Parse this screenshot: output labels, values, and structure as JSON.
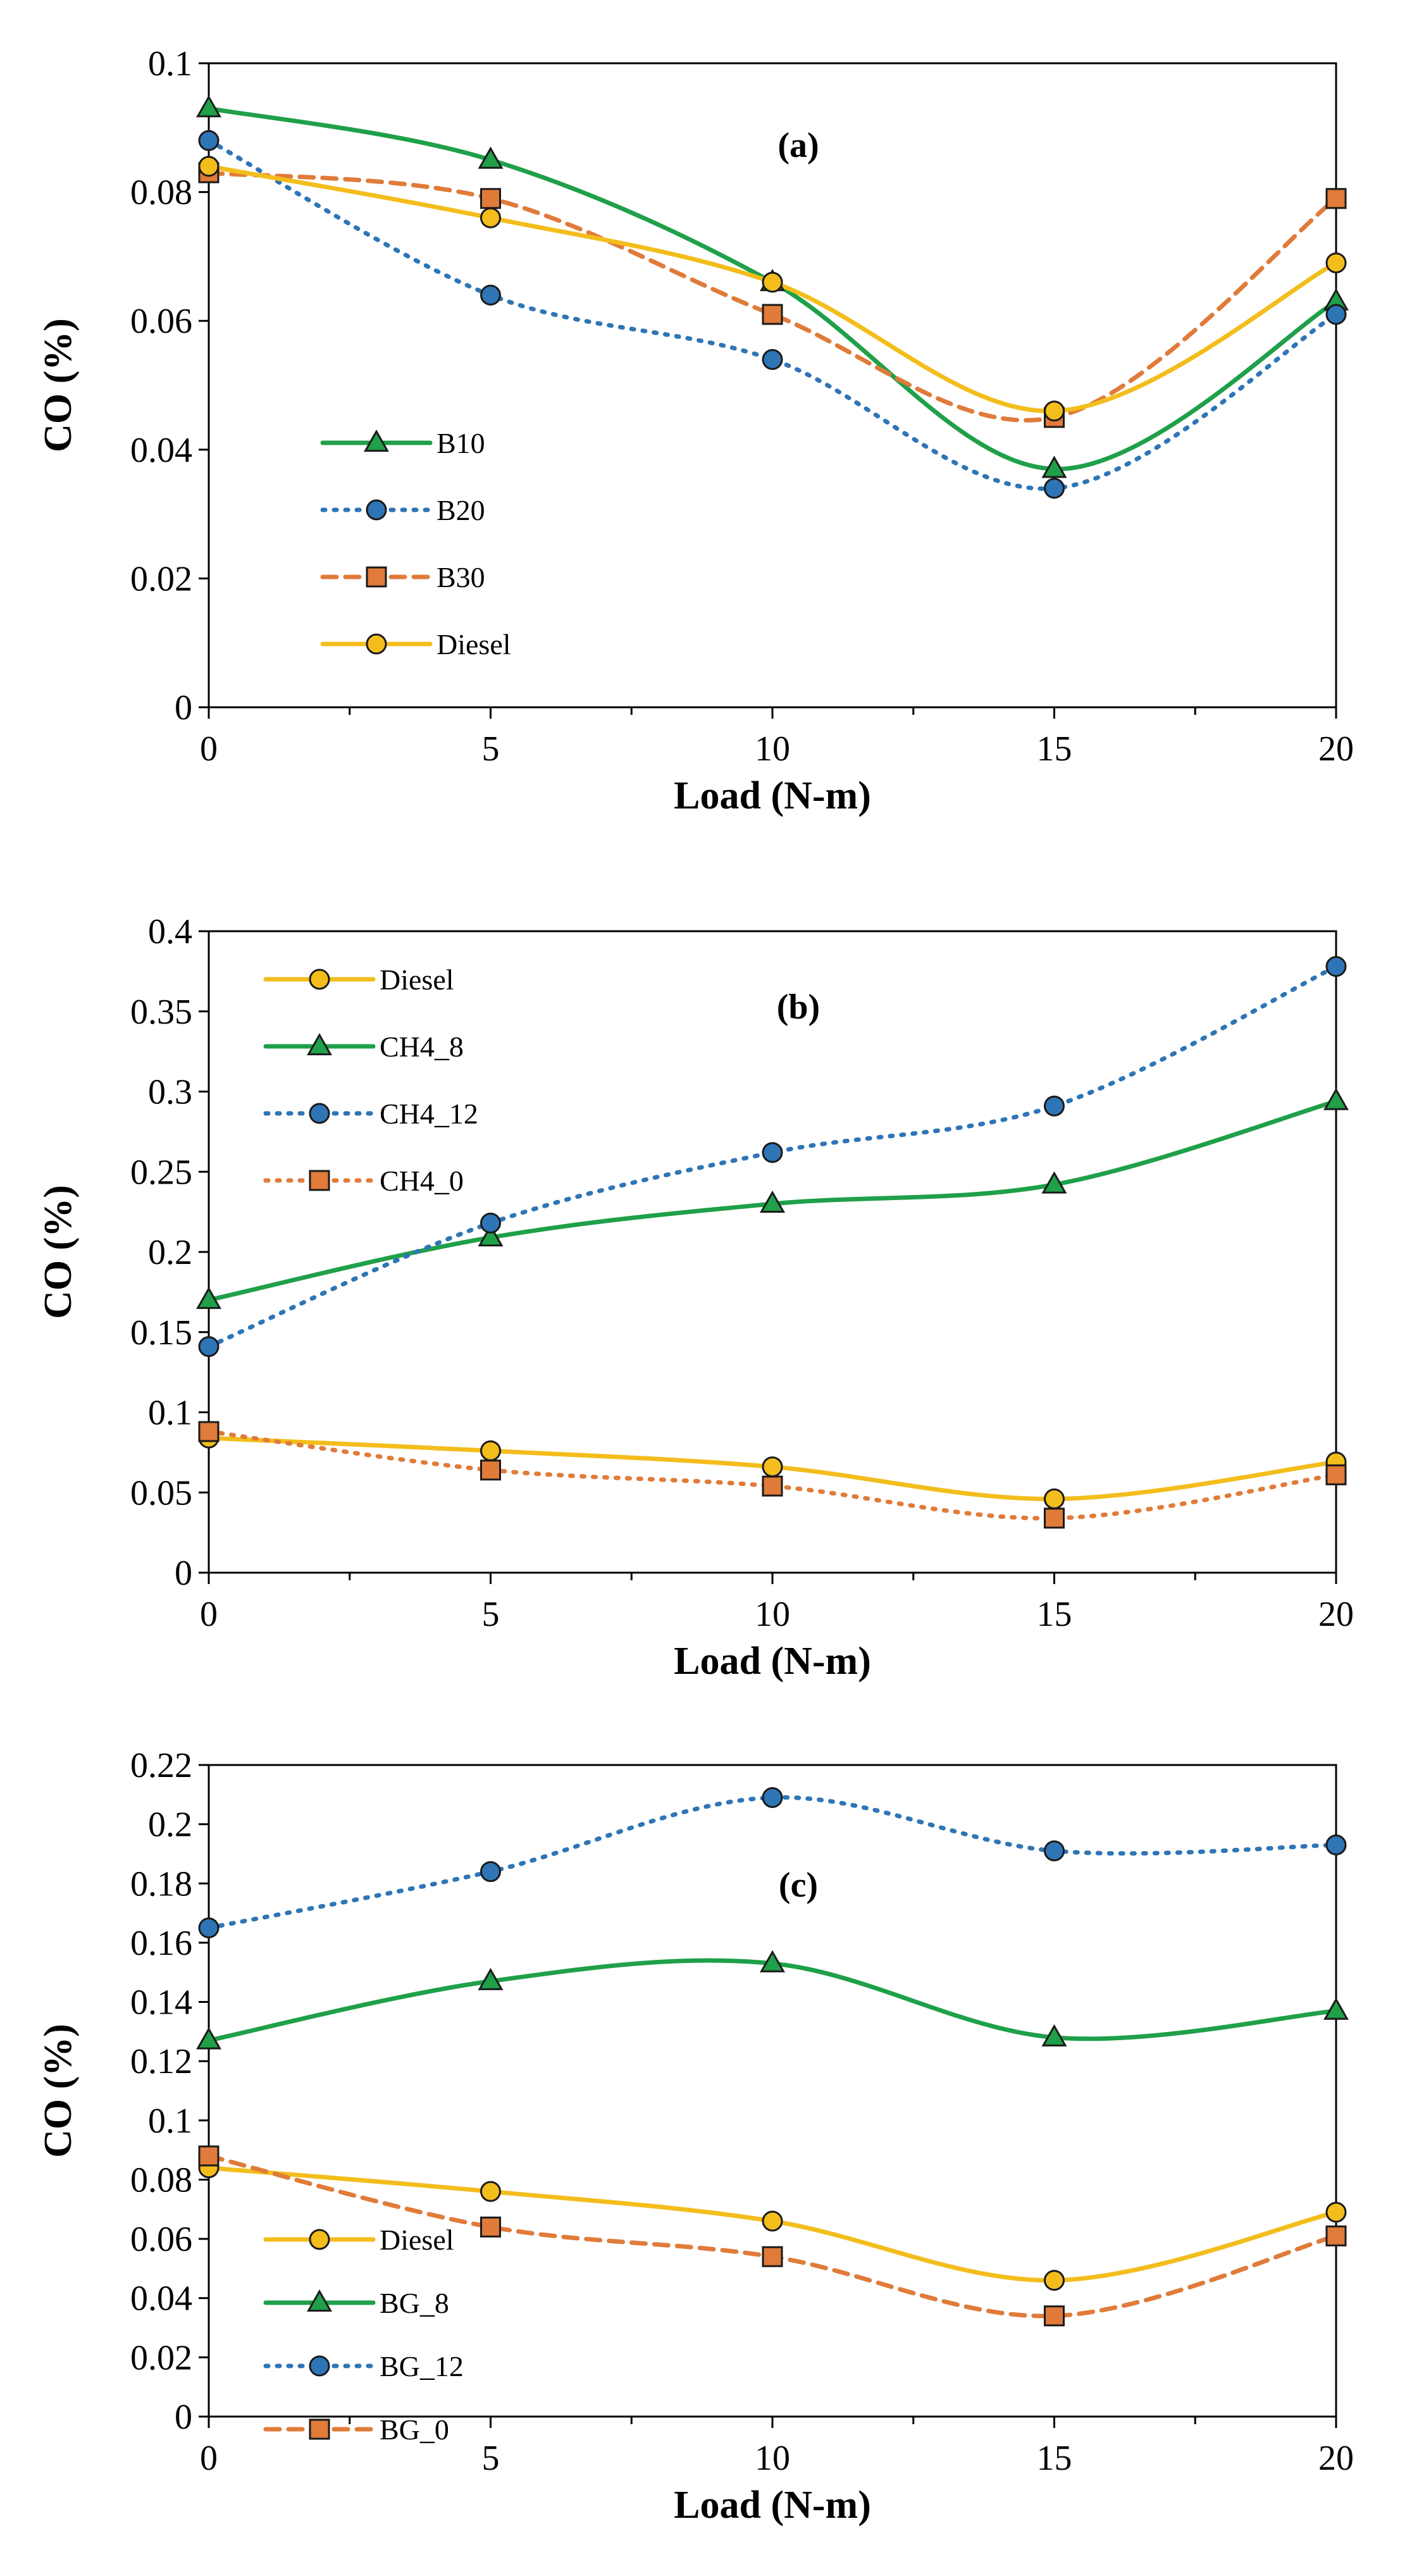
{
  "chart_data": [
    {
      "type": "line",
      "panel": "(a)",
      "xlabel": "Load (N-m)",
      "ylabel": "CO (%)",
      "x": [
        0,
        5,
        10,
        15,
        20
      ],
      "xticks": [
        "0",
        "5",
        "10",
        "15",
        "20"
      ],
      "xlim": [
        0,
        20
      ],
      "ylim": [
        0,
        0.1
      ],
      "yticks": [
        "0",
        "0.02",
        "0.04",
        "0.06",
        "0.08",
        "0.1"
      ],
      "grid": false,
      "legend_position": "bottom-left",
      "series": [
        {
          "name": "B10",
          "values": [
            0.093,
            0.085,
            0.066,
            0.037,
            0.063
          ],
          "color": "#1fa049",
          "marker": "triangle",
          "line": "solid"
        },
        {
          "name": "B20",
          "values": [
            0.088,
            0.064,
            0.054,
            0.034,
            0.061
          ],
          "color": "#2e75b6",
          "marker": "circle",
          "line": "dotted"
        },
        {
          "name": "B30",
          "values": [
            0.083,
            0.079,
            0.061,
            0.045,
            0.079
          ],
          "color": "#e07b39",
          "marker": "square",
          "line": "dashed"
        },
        {
          "name": "Diesel",
          "values": [
            0.084,
            0.076,
            0.066,
            0.046,
            0.069
          ],
          "color": "#f3bd1c",
          "marker": "circle",
          "line": "solid"
        }
      ]
    },
    {
      "type": "line",
      "panel": "(b)",
      "xlabel": "Load (N-m)",
      "ylabel": "CO (%)",
      "x": [
        0,
        5,
        10,
        15,
        20
      ],
      "xticks": [
        "0",
        "5",
        "10",
        "15",
        "20"
      ],
      "xlim": [
        0,
        20
      ],
      "ylim": [
        0,
        0.4
      ],
      "yticks": [
        "0",
        "0.05",
        "0.1",
        "0.15",
        "0.2",
        "0.25",
        "0.3",
        "0.35",
        "0.4"
      ],
      "grid": false,
      "legend_position": "top-left",
      "series": [
        {
          "name": "Diesel",
          "values": [
            0.084,
            0.076,
            0.066,
            0.046,
            0.069
          ],
          "color": "#f3bd1c",
          "marker": "circle",
          "line": "solid"
        },
        {
          "name": "CH4_8",
          "values": [
            0.17,
            0.209,
            0.23,
            0.242,
            0.294
          ],
          "color": "#1fa049",
          "marker": "triangle",
          "line": "solid"
        },
        {
          "name": "CH4_12",
          "values": [
            0.141,
            0.218,
            0.262,
            0.291,
            0.378
          ],
          "color": "#2e75b6",
          "marker": "circle",
          "line": "dotted"
        },
        {
          "name": "CH4_0",
          "values": [
            0.088,
            0.064,
            0.054,
            0.034,
            0.061
          ],
          "color": "#e07b39",
          "marker": "square",
          "line": "dotted"
        }
      ]
    },
    {
      "type": "line",
      "panel": "(c)",
      "xlabel": "Load (N-m)",
      "ylabel": "CO (%)",
      "x": [
        0,
        5,
        10,
        15,
        20
      ],
      "xticks": [
        "0",
        "5",
        "10",
        "15",
        "20"
      ],
      "xlim": [
        0,
        20
      ],
      "ylim": [
        0,
        0.22
      ],
      "yticks": [
        "0",
        "0.02",
        "0.04",
        "0.06",
        "0.08",
        "0.1",
        "0.12",
        "0.14",
        "0.16",
        "0.18",
        "0.2",
        "0.22"
      ],
      "grid": false,
      "legend_position": "bottom-left",
      "series": [
        {
          "name": "Diesel",
          "values": [
            0.084,
            0.076,
            0.066,
            0.046,
            0.069
          ],
          "color": "#f3bd1c",
          "marker": "circle",
          "line": "solid"
        },
        {
          "name": "BG_8",
          "values": [
            0.127,
            0.147,
            0.153,
            0.128,
            0.137
          ],
          "color": "#1fa049",
          "marker": "triangle",
          "line": "solid"
        },
        {
          "name": "BG_12",
          "values": [
            0.165,
            0.184,
            0.209,
            0.191,
            0.193
          ],
          "color": "#2e75b6",
          "marker": "circle",
          "line": "dotted"
        },
        {
          "name": "BG_0",
          "values": [
            0.088,
            0.064,
            0.054,
            0.034,
            0.061
          ],
          "color": "#e07b39",
          "marker": "square",
          "line": "dashed"
        }
      ]
    }
  ]
}
